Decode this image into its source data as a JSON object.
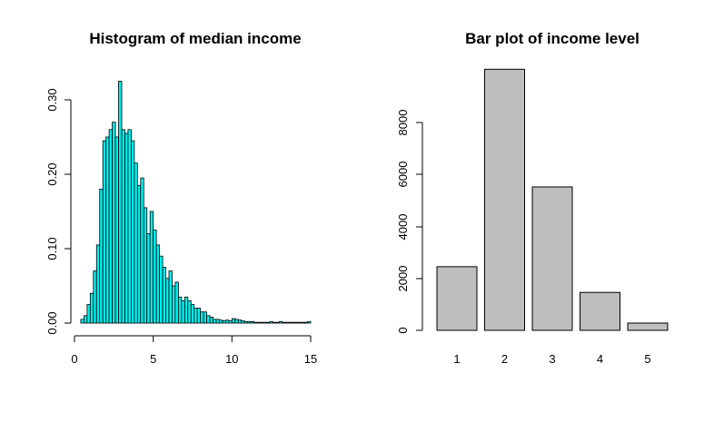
{
  "chart_data": [
    {
      "type": "bar",
      "subtype": "histogram",
      "title": "Histogram of median income",
      "xlabel": "",
      "ylabel": "",
      "fill_color": "#00eeee",
      "bin_width": 0.2,
      "xlim": [
        0,
        15
      ],
      "ylim": [
        0,
        0.3
      ],
      "x_ticks": [
        "0",
        "5",
        "10",
        "15"
      ],
      "y_ticks": [
        "0.00",
        "0.10",
        "0.20",
        "0.30"
      ],
      "bin_starts": [
        0.4,
        0.6,
        0.8,
        1.0,
        1.2,
        1.4,
        1.6,
        1.8,
        2.0,
        2.2,
        2.4,
        2.6,
        2.8,
        3.0,
        3.2,
        3.4,
        3.6,
        3.8,
        4.0,
        4.2,
        4.4,
        4.6,
        4.8,
        5.0,
        5.2,
        5.4,
        5.6,
        5.8,
        6.0,
        6.2,
        6.4,
        6.6,
        6.8,
        7.0,
        7.2,
        7.4,
        7.6,
        7.8,
        8.0,
        8.2,
        8.4,
        8.6,
        8.8,
        9.0,
        9.2,
        9.4,
        9.6,
        9.8,
        10.0,
        10.2,
        10.4,
        10.6,
        10.8,
        11.0,
        11.2,
        11.4,
        11.6,
        11.8,
        12.0,
        12.2,
        12.4,
        12.6,
        12.8,
        13.0,
        13.2,
        13.4,
        13.6,
        13.8,
        14.0,
        14.2,
        14.4,
        14.6,
        14.8
      ],
      "values": [
        0.005,
        0.01,
        0.025,
        0.04,
        0.07,
        0.105,
        0.18,
        0.245,
        0.25,
        0.26,
        0.27,
        0.25,
        0.325,
        0.26,
        0.255,
        0.26,
        0.245,
        0.215,
        0.185,
        0.195,
        0.155,
        0.12,
        0.15,
        0.125,
        0.105,
        0.09,
        0.075,
        0.06,
        0.07,
        0.05,
        0.055,
        0.035,
        0.03,
        0.035,
        0.03,
        0.025,
        0.02,
        0.02,
        0.015,
        0.015,
        0.01,
        0.008,
        0.005,
        0.005,
        0.004,
        0.003,
        0.004,
        0.003,
        0.006,
        0.005,
        0.004,
        0.003,
        0.002,
        0.002,
        0.002,
        0.001,
        0.001,
        0.001,
        0.001,
        0.001,
        0.002,
        0.001,
        0.001,
        0.002,
        0.001,
        0.001,
        0.001,
        0.001,
        0.001,
        0.001,
        0.001,
        0.001,
        0.002
      ]
    },
    {
      "type": "bar",
      "title": "Bar plot of income level",
      "xlabel": "",
      "ylabel": "",
      "fill_color": "#bebebe",
      "categories": [
        "1",
        "2",
        "3",
        "4",
        "5"
      ],
      "values": [
        2450,
        10050,
        5520,
        1460,
        280
      ],
      "ylim": [
        0,
        10050
      ],
      "y_ticks": [
        "0",
        "2000",
        "4000",
        "6000",
        "8000"
      ]
    }
  ]
}
